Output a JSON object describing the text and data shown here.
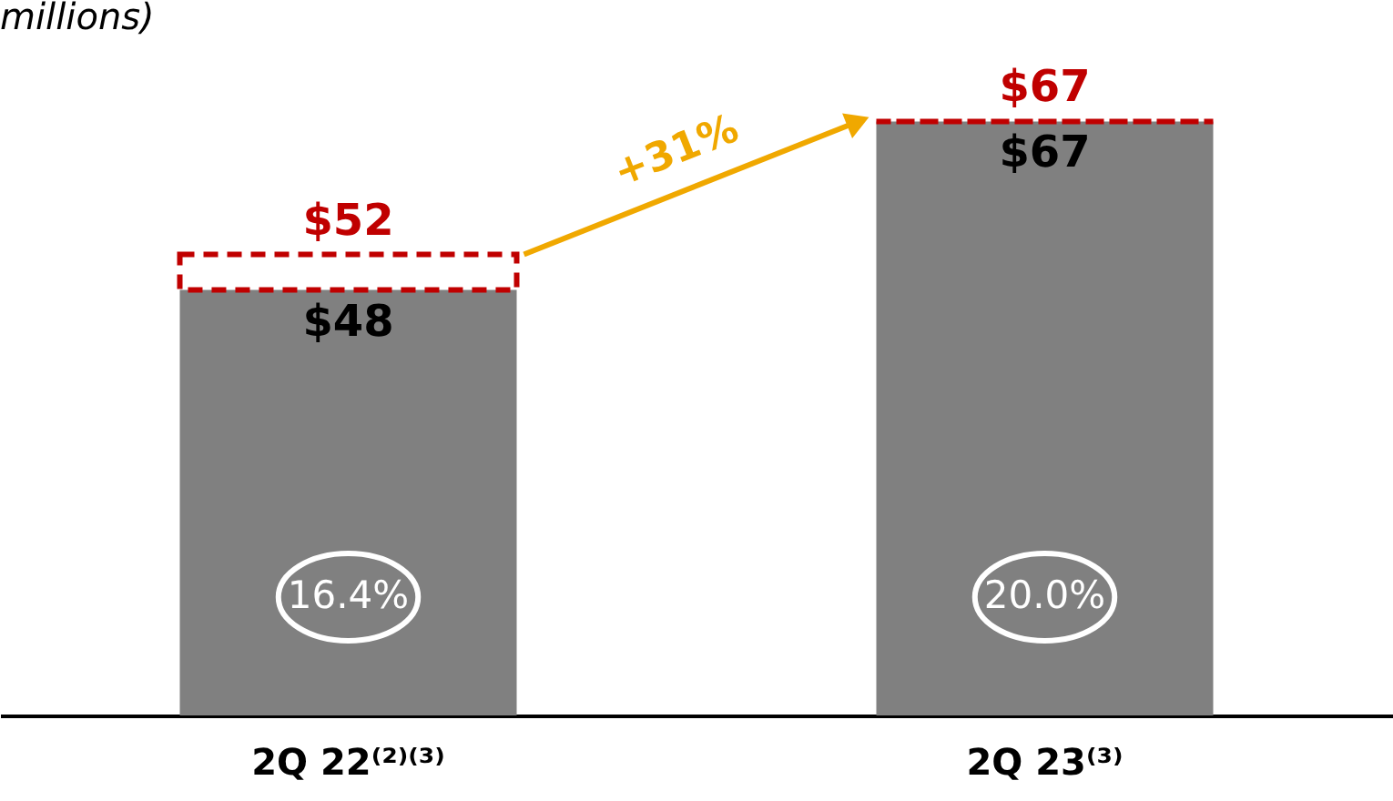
{
  "chart_data": {
    "type": "bar",
    "title": "millions)",
    "stacked": true,
    "categories": [
      "2Q 22⁽²⁾⁽³⁾",
      "2Q 23⁽³⁾"
    ],
    "series": [
      {
        "color": "#808080",
        "values": [
          48,
          67
        ],
        "value_labels": [
          "$48",
          "$67"
        ]
      },
      {
        "color": "#c00000",
        "values": [
          4,
          0
        ],
        "line_style": "dashed"
      }
    ],
    "totals": [
      "$52",
      "$67"
    ],
    "annotations": [
      "+31%",
      "16.4%",
      "20.0%"
    ],
    "grid": false,
    "legend": false
  }
}
